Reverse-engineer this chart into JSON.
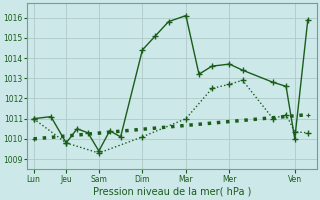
{
  "background_color": "#cce8e8",
  "grid_color": "#b0c8c8",
  "line_color": "#1a5c1a",
  "xlabel": "Pression niveau de la mer( hPa )",
  "ylim": [
    1008.5,
    1016.7
  ],
  "yticks": [
    1009,
    1010,
    1011,
    1012,
    1013,
    1014,
    1015,
    1016
  ],
  "xtick_labels": [
    "Lun",
    "Jeu",
    "Sam",
    "Dim",
    "Mar",
    "Mer",
    "Ven"
  ],
  "xtick_positions": [
    0,
    0.75,
    1.5,
    2.5,
    3.5,
    4.5,
    6.0
  ],
  "xlim": [
    -0.15,
    6.5
  ],
  "jagged_x": [
    0.0,
    0.4,
    0.75,
    1.0,
    1.25,
    1.5,
    1.75,
    2.0,
    2.5,
    2.8,
    3.1,
    3.5,
    3.8,
    4.1,
    4.5,
    4.8,
    5.5,
    5.8,
    6.0,
    6.3
  ],
  "jagged_y": [
    1011.0,
    1011.1,
    1009.8,
    1010.5,
    1010.3,
    1009.4,
    1010.4,
    1010.1,
    1014.4,
    1015.1,
    1015.8,
    1016.1,
    1013.2,
    1013.6,
    1013.7,
    1013.4,
    1012.8,
    1012.6,
    1010.0,
    1015.9
  ],
  "dotted_x": [
    0.0,
    0.75,
    1.5,
    2.5,
    3.5,
    4.1,
    4.5,
    4.8,
    5.5,
    5.8,
    6.0,
    6.3
  ],
  "dotted_y": [
    1011.0,
    1009.8,
    1009.3,
    1010.1,
    1011.0,
    1012.5,
    1012.7,
    1012.9,
    1011.0,
    1011.2,
    1010.35,
    1010.3
  ],
  "trend_x": [
    0.0,
    6.3
  ],
  "trend_y": [
    1010.0,
    1011.2
  ]
}
